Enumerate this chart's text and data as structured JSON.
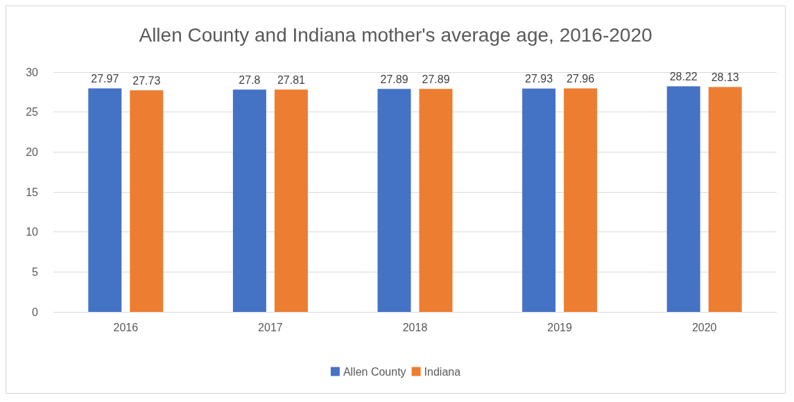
{
  "chart_data": {
    "type": "bar",
    "title": "Allen County and Indiana mother's average age, 2016-2020",
    "categories": [
      "2016",
      "2017",
      "2018",
      "2019",
      "2020"
    ],
    "series": [
      {
        "name": "Allen County",
        "color": "#4472c4",
        "values": [
          27.97,
          27.8,
          27.89,
          27.93,
          28.22
        ]
      },
      {
        "name": "Indiana",
        "color": "#ed7d31",
        "values": [
          27.73,
          27.81,
          27.89,
          27.96,
          28.13
        ]
      }
    ],
    "ylim": [
      0,
      30
    ],
    "yticks": [
      0,
      5,
      10,
      15,
      20,
      25,
      30
    ],
    "grid": "y",
    "legend": "bottom",
    "data_labels": true
  }
}
